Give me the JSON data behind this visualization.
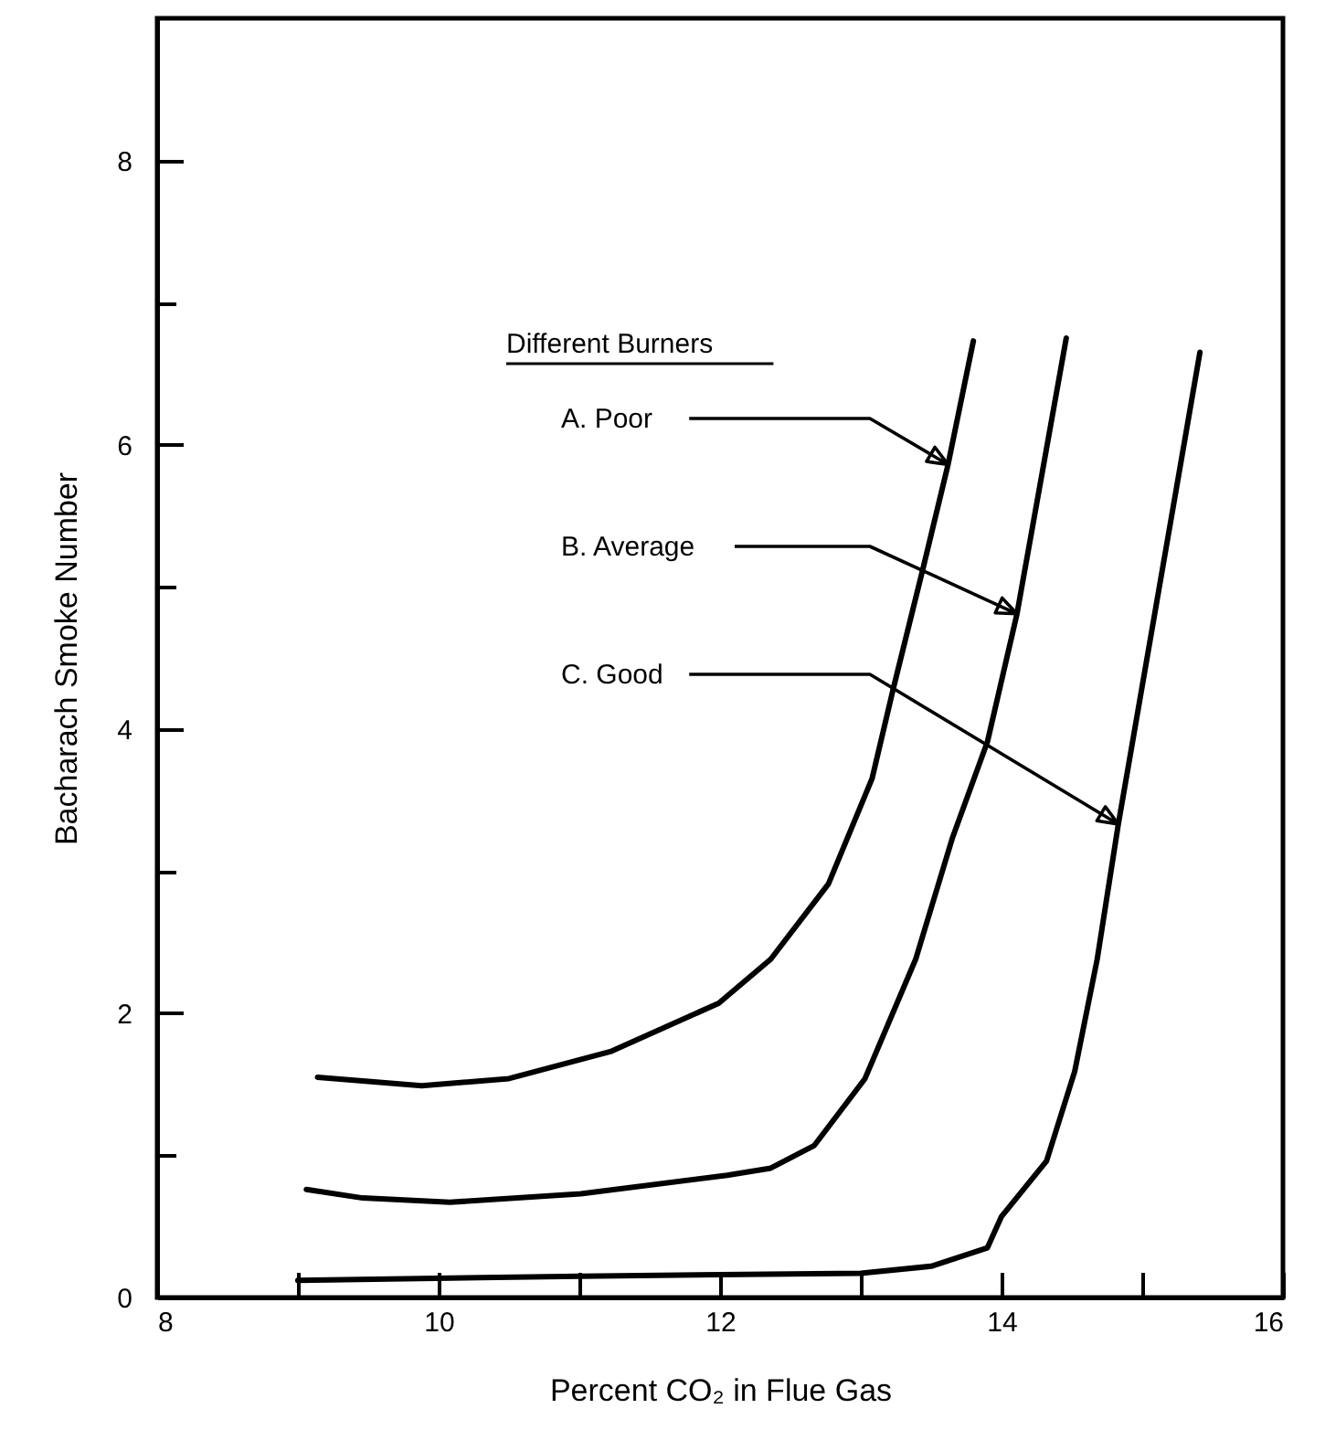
{
  "chart_data": {
    "type": "line",
    "xlabel": "Percent CO₂ in Flue Gas",
    "ylabel": "Bacharach Smoke Number",
    "legend_title": "Different Burners",
    "xlim": [
      8,
      16
    ],
    "xticks": [
      8,
      {
        "value": 9,
        "label": null
      },
      10,
      {
        "value": 11,
        "label": null
      },
      12,
      {
        "value": 13,
        "label": null
      },
      14,
      {
        "value": 15,
        "label": null
      },
      16
    ],
    "ylim": [
      0,
      9
    ],
    "yticks": [
      0,
      {
        "value": 1,
        "label": null
      },
      2,
      {
        "value": 3,
        "label": null
      },
      4,
      {
        "value": 5,
        "label": null
      },
      6,
      {
        "value": 7,
        "label": null
      },
      8
    ],
    "grid": false,
    "marker": "none",
    "line_style": "solid",
    "annotations": [
      "A. Poor",
      "B. Average",
      "C. Good"
    ],
    "series": [
      {
        "color": "#000000",
        "x": [
          9.14,
          9.88,
          10.5,
          11.22,
          11.99,
          12.36,
          12.77,
          13.08,
          13.23,
          13.44,
          13.62,
          13.8
        ],
        "values": [
          1.55,
          1.49,
          1.54,
          1.73,
          2.07,
          2.38,
          2.91,
          3.65,
          4.28,
          5.12,
          5.86,
          6.73
        ]
      },
      {
        "color": "#000000",
        "x": [
          9.06,
          9.46,
          10.08,
          11.01,
          12.05,
          12.36,
          12.67,
          13.03,
          13.39,
          13.65,
          13.9,
          14.11,
          14.46
        ],
        "values": [
          0.76,
          0.7,
          0.67,
          0.73,
          0.86,
          0.91,
          1.07,
          1.54,
          2.38,
          3.23,
          3.91,
          4.81,
          6.75
        ]
      },
      {
        "color": "#000000",
        "x": [
          9,
          11,
          13,
          13.5,
          13.9,
          14.0,
          14.32,
          14.52,
          14.68,
          14.83,
          15.41
        ],
        "values": [
          0.12,
          0.15,
          0.17,
          0.22,
          0.35,
          0.57,
          0.96,
          1.59,
          2.38,
          3.33,
          6.65
        ]
      }
    ]
  }
}
